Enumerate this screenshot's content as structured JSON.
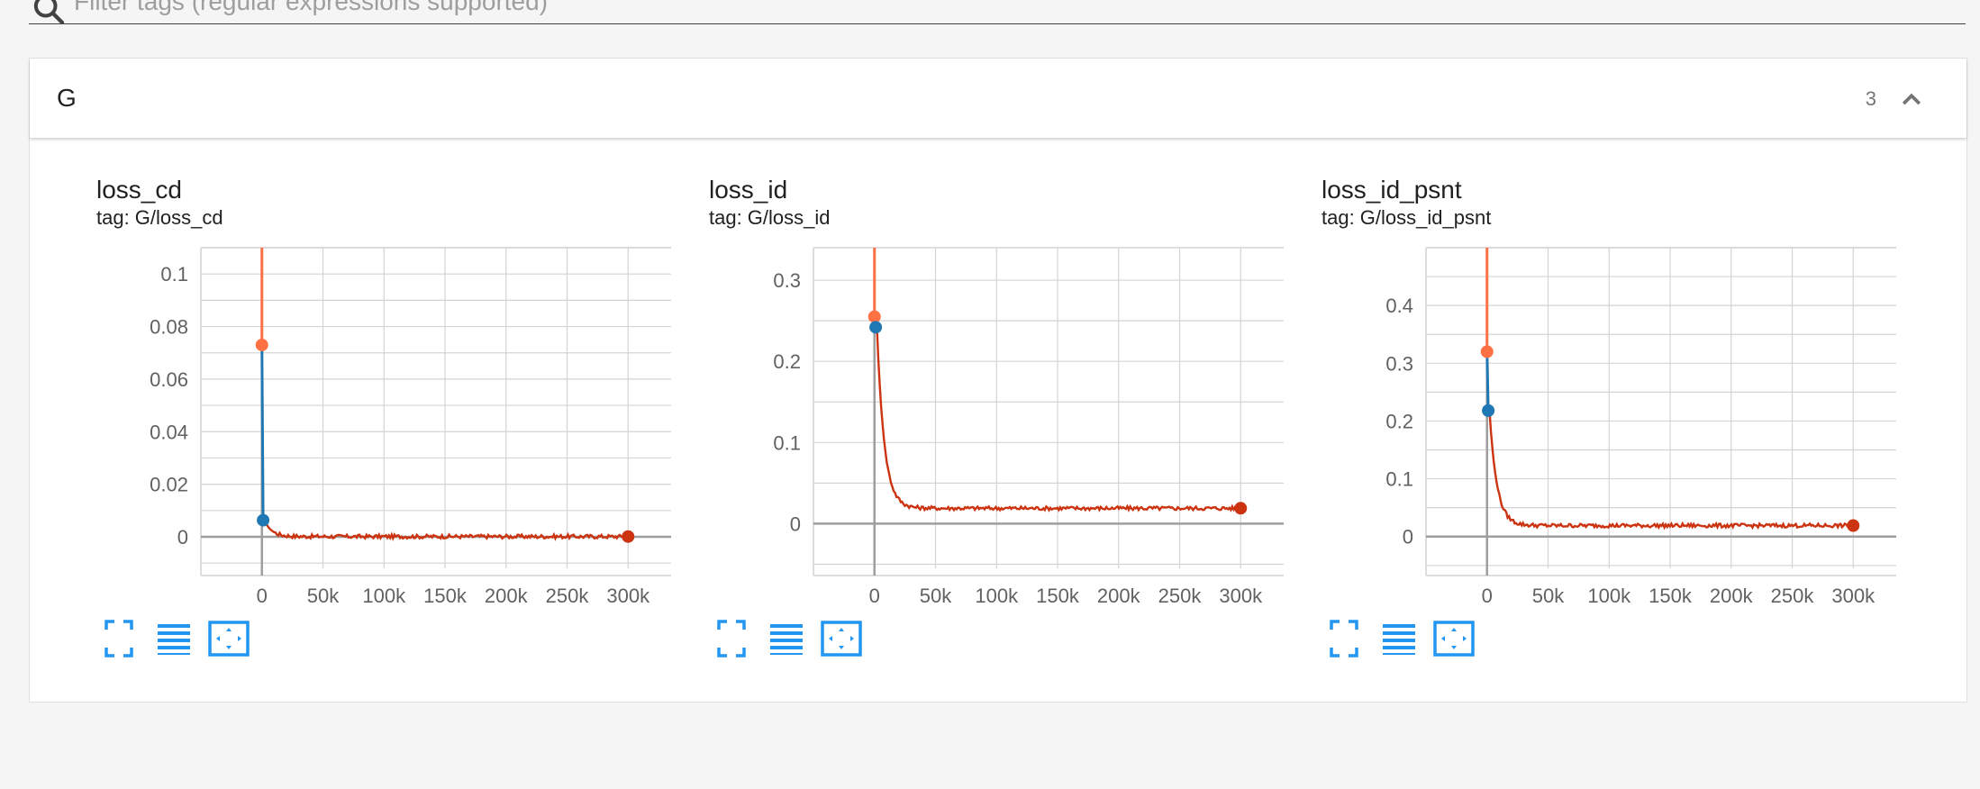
{
  "filter": {
    "placeholder": "Filter tags (regular expressions supported)"
  },
  "group": {
    "title": "G",
    "count": "3"
  },
  "colors": {
    "accent": "#2196f3",
    "series_orange": "#ff7043",
    "series_red": "#cc3311",
    "series_blue": "#1f77b4",
    "grid": "#d4d4d4",
    "axis": "#9e9e9e"
  },
  "panels": [
    {
      "title": "loss_cd",
      "tag": "tag: G/loss_cd",
      "chart_data": {
        "type": "line",
        "x_ticks": [
          "0",
          "50k",
          "100k",
          "150k",
          "200k",
          "250k",
          "300k"
        ],
        "y_ticks": [
          "0",
          "0.02",
          "0.04",
          "0.06",
          "0.08",
          "0.1"
        ],
        "xlim": [
          -50000,
          350000
        ],
        "ylim": [
          -0.012,
          0.11
        ],
        "points": [
          {
            "series": "orange",
            "x": 0,
            "y": 0.073
          },
          {
            "series": "blue",
            "x": 1000,
            "y": 0.0063
          },
          {
            "series": "red",
            "x": 300000,
            "y": 0.0001
          }
        ]
      },
      "buttons": [
        "fullscreen-icon",
        "toggle-y-log-icon",
        "fit-domain-icon"
      ]
    },
    {
      "title": "loss_id",
      "tag": "tag: G/loss_id",
      "chart_data": {
        "type": "line",
        "x_ticks": [
          "0",
          "50k",
          "100k",
          "150k",
          "200k",
          "250k",
          "300k"
        ],
        "y_ticks": [
          "0",
          "0.1",
          "0.2",
          "0.3"
        ],
        "xlim": [
          -50000,
          350000
        ],
        "ylim": [
          -0.055,
          0.34
        ],
        "points": [
          {
            "series": "orange",
            "x": 0,
            "y": 0.255
          },
          {
            "series": "blue",
            "x": 1000,
            "y": 0.242
          },
          {
            "series": "red",
            "x": 300000,
            "y": 0.019
          }
        ]
      },
      "buttons": [
        "fullscreen-icon",
        "toggle-y-log-icon",
        "fit-domain-icon"
      ]
    },
    {
      "title": "loss_id_psnt",
      "tag": "tag: G/loss_id_psnt",
      "chart_data": {
        "type": "line",
        "x_ticks": [
          "0",
          "50k",
          "100k",
          "150k",
          "200k",
          "250k",
          "300k"
        ],
        "y_ticks": [
          "0",
          "0.1",
          "0.2",
          "0.3",
          "0.4"
        ],
        "xlim": [
          -50000,
          350000
        ],
        "ylim": [
          -0.055,
          0.5
        ],
        "points": [
          {
            "series": "orange",
            "x": 0,
            "y": 0.32
          },
          {
            "series": "blue",
            "x": 1000,
            "y": 0.218
          },
          {
            "series": "red",
            "x": 300000,
            "y": 0.019
          }
        ]
      },
      "buttons": [
        "fullscreen-icon",
        "toggle-y-log-icon",
        "fit-domain-icon"
      ]
    }
  ]
}
